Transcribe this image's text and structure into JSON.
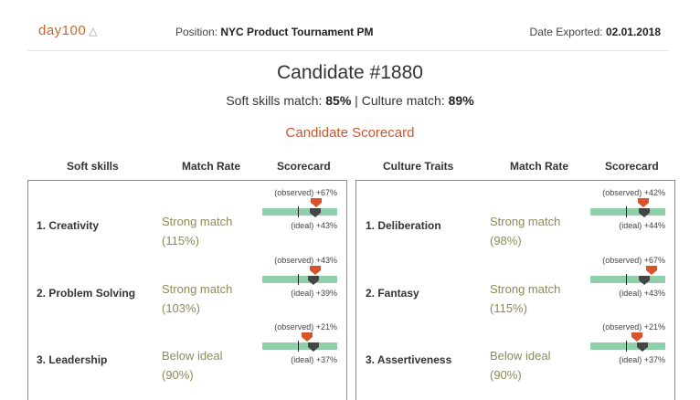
{
  "header": {
    "logo": "day100",
    "logo_icon": "triangle-outline-icon",
    "position_label": "Position:",
    "position_value": "NYC Product Tournament PM",
    "date_label": "Date Exported:",
    "date_value": "02.01.2018"
  },
  "candidate": {
    "title": "Candidate #1880",
    "soft_label": "Soft skills match:",
    "soft_value": "85%",
    "sep": "|",
    "culture_label": "Culture match:",
    "culture_value": "89%"
  },
  "section_title": "Candidate Scorecard",
  "colors": {
    "accent": "#d0542b",
    "track": "#8fcfaa",
    "rate_text": "#8b8b5a",
    "ideal_marker": "#444444"
  },
  "soft_skills": {
    "headers": {
      "name": "Soft skills",
      "rate": "Match Rate",
      "card": "Scorecard"
    },
    "rows": [
      {
        "name": "1. Creativity",
        "rate": "Strong match",
        "pct": "(115%)",
        "observed": "(observed) +67%",
        "ideal": "(ideal) +43%",
        "observed_level": 0.72,
        "ideal_level": 0.71
      },
      {
        "name": "2. Problem Solving",
        "rate": "Strong match",
        "pct": "(103%)",
        "observed": "(observed) +43%",
        "ideal": "(ideal) +39%",
        "observed_level": 0.71,
        "ideal_level": 0.68
      },
      {
        "name": "3. Leadership",
        "rate": "Below ideal",
        "pct": "(90%)",
        "observed": "(observed) +21%",
        "ideal": "(ideal) +37%",
        "observed_level": 0.6,
        "ideal_level": 0.68
      }
    ]
  },
  "culture_traits": {
    "headers": {
      "name": "Culture Traits",
      "rate": "Match Rate",
      "card": "Scorecard"
    },
    "rows": [
      {
        "name": "1. Deliberation",
        "rate": "Strong match",
        "pct": "(98%)",
        "observed": "(observed) +42%",
        "ideal": "(ideal) +44%",
        "observed_level": 0.71,
        "ideal_level": 0.72
      },
      {
        "name": "2. Fantasy",
        "rate": "Strong match",
        "pct": "(115%)",
        "observed": "(observed) +67%",
        "ideal": "(ideal) +43%",
        "observed_level": 0.82,
        "ideal_level": 0.72
      },
      {
        "name": "3. Assertiveness",
        "rate": "Below ideal",
        "pct": "(90%)",
        "observed": "(observed) +21%",
        "ideal": "(ideal) +37%",
        "observed_level": 0.62,
        "ideal_level": 0.7
      }
    ]
  }
}
